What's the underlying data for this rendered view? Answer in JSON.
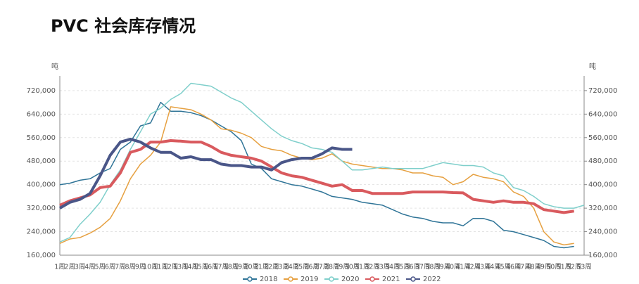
{
  "chart_data": {
    "type": "line",
    "title": "PVC 社会库存情况",
    "y_axis_label": "吨",
    "y2_axis_label": "吨",
    "categories": [
      "1周",
      "2周",
      "3周",
      "4周",
      "5周",
      "6周",
      "7周",
      "8周",
      "9周",
      "10周",
      "11周",
      "12周",
      "13周",
      "14周",
      "15周",
      "16周",
      "17周",
      "18周",
      "19周",
      "20周",
      "21周",
      "22周",
      "23周",
      "24周",
      "25周",
      "26周",
      "27周",
      "28周",
      "29周",
      "30周",
      "31周",
      "32周",
      "33周",
      "34周",
      "35周",
      "36周",
      "37周",
      "38周",
      "39周",
      "40周",
      "41周",
      "42周",
      "43周",
      "44周",
      "45周",
      "46周",
      "47周",
      "48周",
      "49周",
      "50周",
      "51周",
      "52周",
      "53周"
    ],
    "ylim": [
      160000,
      770000
    ],
    "y2lim": [
      160000,
      770000
    ],
    "yticks": [
      {
        "value": 160000,
        "label": "160,000"
      },
      {
        "value": 240000,
        "label": "240,000"
      },
      {
        "value": 320000,
        "label": "320,000"
      },
      {
        "value": 400000,
        "label": "400,000"
      },
      {
        "value": 480000,
        "label": "480,000"
      },
      {
        "value": 560000,
        "label": "560,000"
      },
      {
        "value": 640000,
        "label": "640,000"
      },
      {
        "value": 720000,
        "label": "720,000"
      }
    ],
    "y2ticks": [
      {
        "value": 160000,
        "label": "160,000"
      },
      {
        "value": 240000,
        "label": "240,000"
      },
      {
        "value": 320000,
        "label": "320,000"
      },
      {
        "value": 400000,
        "label": "400,000"
      },
      {
        "value": 480000,
        "label": "480,000"
      },
      {
        "value": 560000,
        "label": "560,000"
      },
      {
        "value": 640000,
        "label": "640,000"
      },
      {
        "value": 720000,
        "label": "720,000"
      }
    ],
    "grid": true,
    "series": [
      {
        "name": "2018",
        "color": "#2f7497",
        "width": 1.5,
        "values": [
          400000,
          405000,
          415000,
          420000,
          440000,
          455000,
          520000,
          545000,
          600000,
          610000,
          680000,
          650000,
          650000,
          645000,
          635000,
          620000,
          600000,
          580000,
          550000,
          470000,
          455000,
          420000,
          410000,
          400000,
          395000,
          385000,
          375000,
          360000,
          355000,
          350000,
          340000,
          335000,
          330000,
          315000,
          300000,
          290000,
          285000,
          275000,
          270000,
          270000,
          260000,
          285000,
          285000,
          275000,
          245000,
          240000,
          230000,
          220000,
          210000,
          190000,
          185000,
          190000,
          null
        ]
      },
      {
        "name": "2019",
        "color": "#e6a040",
        "width": 1.5,
        "values": [
          200000,
          215000,
          220000,
          235000,
          255000,
          285000,
          345000,
          420000,
          470000,
          500000,
          545000,
          665000,
          660000,
          655000,
          640000,
          620000,
          590000,
          585000,
          575000,
          560000,
          530000,
          520000,
          515000,
          500000,
          490000,
          485000,
          490000,
          505000,
          480000,
          470000,
          465000,
          460000,
          455000,
          455000,
          450000,
          440000,
          440000,
          430000,
          425000,
          400000,
          410000,
          435000,
          425000,
          420000,
          410000,
          375000,
          360000,
          320000,
          240000,
          205000,
          195000,
          200000,
          null
        ]
      },
      {
        "name": "2020",
        "color": "#7fcfcb",
        "width": 1.5,
        "values": [
          205000,
          220000,
          265000,
          300000,
          340000,
          400000,
          450000,
          520000,
          580000,
          640000,
          660000,
          690000,
          710000,
          745000,
          740000,
          735000,
          715000,
          695000,
          680000,
          650000,
          620000,
          590000,
          565000,
          550000,
          540000,
          525000,
          520000,
          510000,
          480000,
          450000,
          450000,
          455000,
          460000,
          455000,
          455000,
          455000,
          455000,
          465000,
          475000,
          470000,
          465000,
          465000,
          460000,
          440000,
          430000,
          390000,
          380000,
          360000,
          335000,
          325000,
          320000,
          320000,
          330000
        ]
      },
      {
        "name": "2021",
        "color": "#d95a5e",
        "width": 4,
        "values": [
          330000,
          345000,
          355000,
          365000,
          390000,
          395000,
          440000,
          510000,
          520000,
          545000,
          545000,
          550000,
          548000,
          545000,
          545000,
          530000,
          510000,
          500000,
          495000,
          490000,
          480000,
          460000,
          440000,
          430000,
          425000,
          415000,
          405000,
          395000,
          400000,
          380000,
          380000,
          370000,
          370000,
          370000,
          370000,
          375000,
          375000,
          375000,
          375000,
          373000,
          372000,
          350000,
          345000,
          340000,
          345000,
          340000,
          340000,
          335000,
          315000,
          310000,
          305000,
          310000,
          null
        ]
      },
      {
        "name": "2022",
        "color": "#4a5688",
        "width": 4,
        "values": [
          320000,
          340000,
          350000,
          370000,
          430000,
          500000,
          545000,
          555000,
          545000,
          525000,
          510000,
          510000,
          490000,
          495000,
          485000,
          485000,
          470000,
          465000,
          465000,
          460000,
          460000,
          450000,
          475000,
          485000,
          490000,
          490000,
          505000,
          525000,
          520000,
          520000,
          null,
          null,
          null,
          null,
          null,
          null,
          null,
          null,
          null,
          null,
          null,
          null,
          null,
          null,
          null,
          null,
          null,
          null,
          null,
          null,
          null,
          null,
          null
        ]
      }
    ]
  }
}
